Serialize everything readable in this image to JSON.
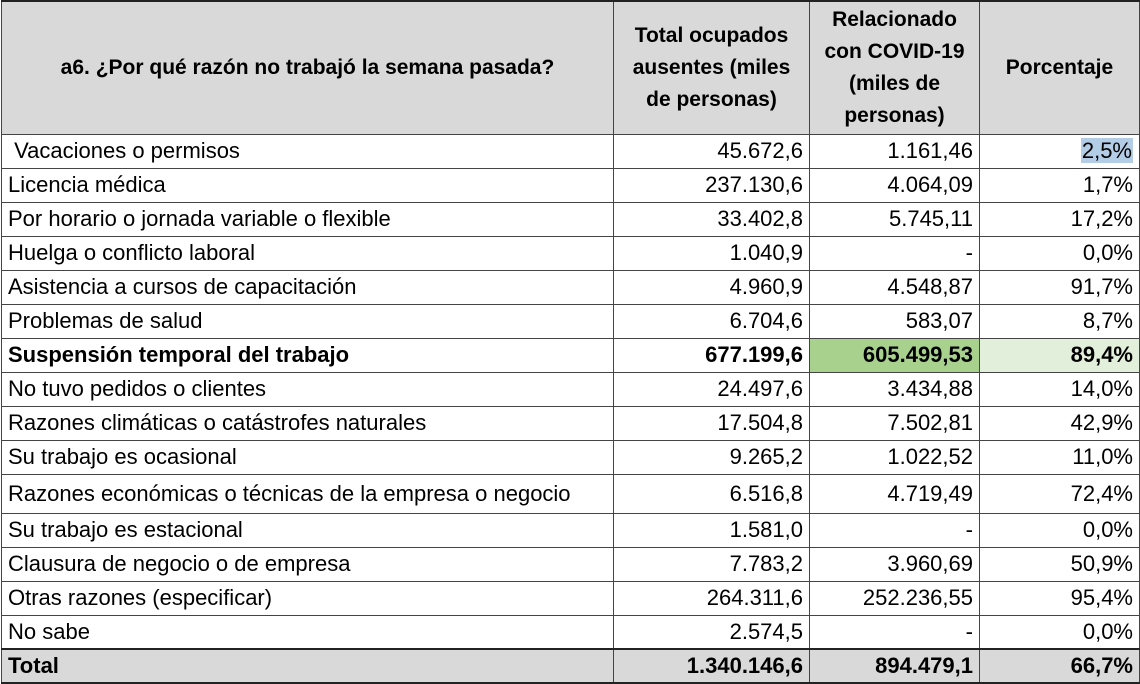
{
  "table": {
    "headers": [
      "a6. ¿Por qué razón no trabajó la semana pasada?",
      "Total ocupados ausentes (miles de personas)",
      "Relacionado con COVID-19 (miles de personas)",
      "Porcentaje"
    ],
    "rows": [
      {
        "label": " Vacaciones o permisos",
        "total": "45.672,6",
        "covid": "1.161,46",
        "pct": "2,5%"
      },
      {
        "label": "Licencia médica",
        "total": "237.130,6",
        "covid": "4.064,09",
        "pct": "1,7%"
      },
      {
        "label": "Por horario o jornada variable o flexible",
        "total": "33.402,8",
        "covid": "5.745,11",
        "pct": "17,2%"
      },
      {
        "label": "Huelga o conflicto laboral",
        "total": "1.040,9",
        "covid": "-",
        "pct": "0,0%"
      },
      {
        "label": "Asistencia a cursos de capacitación",
        "total": "4.960,9",
        "covid": "4.548,87",
        "pct": "91,7%"
      },
      {
        "label": "Problemas de salud",
        "total": "6.704,6",
        "covid": "583,07",
        "pct": "8,7%"
      },
      {
        "label": "Suspensión temporal del trabajo",
        "total": "677.199,6",
        "covid": "605.499,53",
        "pct": "89,4%"
      },
      {
        "label": "No tuvo pedidos o clientes",
        "total": "24.497,6",
        "covid": "3.434,88",
        "pct": "14,0%"
      },
      {
        "label": "Razones climáticas o catástrofes naturales",
        "total": "17.504,8",
        "covid": "7.502,81",
        "pct": "42,9%"
      },
      {
        "label": "Su trabajo es ocasional",
        "total": "9.265,2",
        "covid": "1.022,52",
        "pct": "11,0%"
      },
      {
        "label": "Razones económicas o técnicas de la empresa o negocio",
        "total": "6.516,8",
        "covid": "4.719,49",
        "pct": "72,4%"
      },
      {
        "label": "Su trabajo es estacional",
        "total": "1.581,0",
        "covid": "-",
        "pct": "0,0%"
      },
      {
        "label": "Clausura de negocio o de empresa",
        "total": "7.783,2",
        "covid": "3.960,69",
        "pct": "50,9%"
      },
      {
        "label": "Otras razones (especificar)",
        "total": "264.311,6",
        "covid": "252.236,55",
        "pct": "95,4%"
      },
      {
        "label": "No sabe",
        "total": "2.574,5",
        "covid": "-",
        "pct": "0,0%"
      }
    ],
    "total_row": {
      "label": "Total",
      "total": "1.340.146,6",
      "covid": "894.479,1",
      "pct": "66,7%"
    }
  },
  "colors": {
    "header_bg": "#d9d9d9",
    "highlight_green": "#a9d18e",
    "highlight_light_green": "#e2efda",
    "selection_blue": "#b4cde6"
  }
}
